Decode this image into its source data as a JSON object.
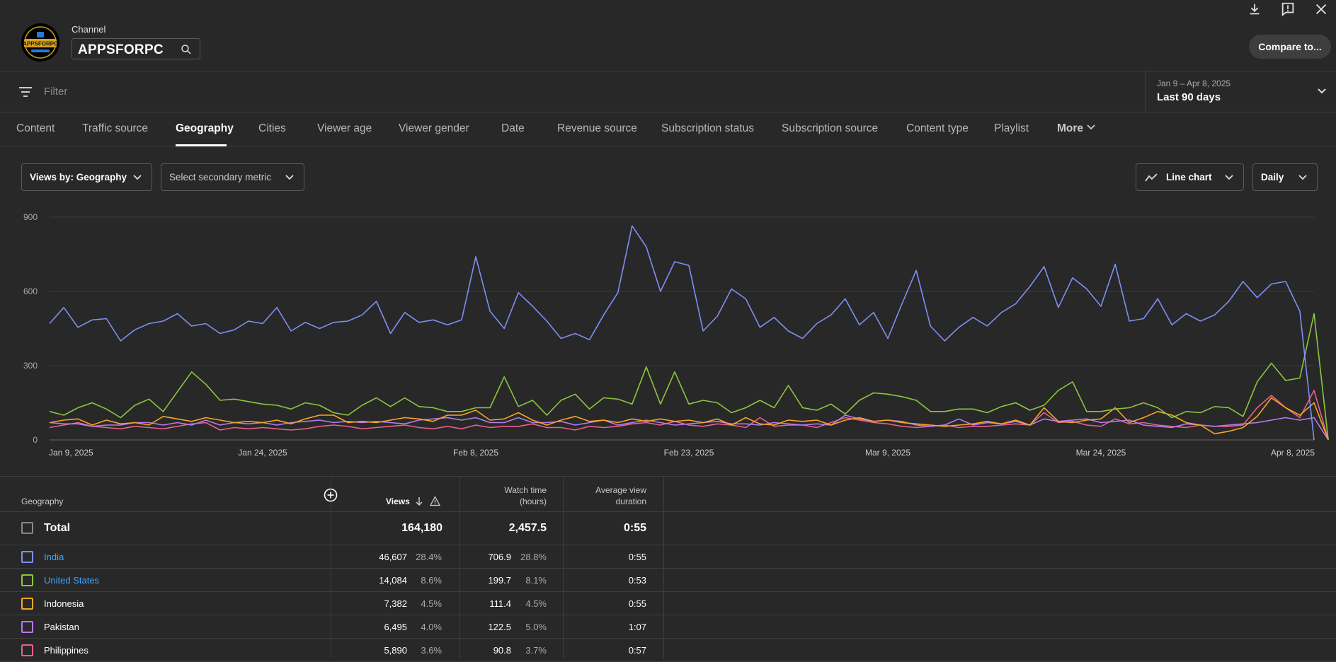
{
  "header": {
    "channel_label": "Channel",
    "channel_name": "APPSFORPC",
    "avatar_text": "APPSFORPC",
    "compare_label": "Compare to..."
  },
  "filter": {
    "placeholder": "Filter",
    "date_range": "Jan 9 – Apr 8, 2025",
    "date_label": "Last 90 days"
  },
  "tabs": [
    "Content",
    "Traffic source",
    "Geography",
    "Cities",
    "Viewer age",
    "Viewer gender",
    "Date",
    "Revenue source",
    "Subscription status",
    "Subscription source",
    "Content type",
    "Playlist",
    "More"
  ],
  "active_tab": "Geography",
  "controls": {
    "views_by": "Views by: Geography",
    "secondary": "Select secondary metric",
    "chart_type": "Line chart",
    "interval": "Daily"
  },
  "colors": {
    "India": "#7d8ff5",
    "United States": "#8cc63f",
    "Indonesia": "#f5a623",
    "Pakistan": "#b57bf0",
    "Philippines": "#e95f8a",
    "link": "#3ea6ff"
  },
  "chart_data": {
    "type": "line",
    "x_start": "Jan 9, 2025",
    "x_ticks": [
      "Jan 9, 2025",
      "Jan 24, 2025",
      "Feb 8, 2025",
      "Feb 23, 2025",
      "Mar 9, 2025",
      "Mar 24, 2025",
      "Apr 8, 2025"
    ],
    "y_ticks": [
      0,
      300,
      600,
      900
    ],
    "ylim": [
      0,
      900
    ],
    "grid": true,
    "series": [
      {
        "name": "India",
        "values": [
          470,
          535,
          455,
          485,
          490,
          400,
          445,
          470,
          480,
          510,
          460,
          470,
          430,
          445,
          480,
          470,
          535,
          440,
          475,
          450,
          475,
          480,
          505,
          560,
          430,
          515,
          475,
          485,
          465,
          485,
          740,
          520,
          450,
          595,
          540,
          480,
          410,
          430,
          405,
          505,
          595,
          865,
          780,
          600,
          720,
          705,
          440,
          500,
          610,
          570,
          455,
          495,
          440,
          410,
          470,
          505,
          570,
          465,
          515,
          410,
          550,
          685,
          460,
          400,
          455,
          495,
          460,
          515,
          550,
          620,
          700,
          535,
          655,
          610,
          540,
          710,
          480,
          490,
          570,
          465,
          510,
          480,
          505,
          560,
          640,
          575,
          630,
          640,
          520,
          0
        ]
      },
      {
        "name": "United States",
        "values": [
          115,
          100,
          130,
          150,
          125,
          90,
          140,
          165,
          115,
          195,
          275,
          225,
          160,
          165,
          155,
          145,
          140,
          125,
          150,
          140,
          110,
          100,
          140,
          170,
          135,
          170,
          135,
          130,
          115,
          115,
          130,
          130,
          255,
          135,
          160,
          100,
          160,
          185,
          125,
          170,
          165,
          145,
          295,
          145,
          275,
          145,
          160,
          150,
          110,
          130,
          160,
          130,
          220,
          130,
          120,
          145,
          105,
          160,
          190,
          185,
          175,
          160,
          115,
          115,
          125,
          125,
          110,
          135,
          150,
          120,
          140,
          200,
          235,
          115,
          115,
          125,
          130,
          150,
          130,
          90,
          115,
          110,
          135,
          130,
          95,
          235,
          310,
          240,
          250,
          510,
          0
        ]
      },
      {
        "name": "Indonesia",
        "values": [
          70,
          80,
          85,
          60,
          80,
          65,
          70,
          60,
          95,
          85,
          75,
          90,
          80,
          70,
          75,
          70,
          80,
          65,
          85,
          100,
          100,
          70,
          75,
          70,
          80,
          90,
          85,
          75,
          100,
          100,
          120,
          80,
          85,
          110,
          80,
          60,
          80,
          95,
          75,
          80,
          70,
          85,
          75,
          85,
          75,
          80,
          70,
          85,
          60,
          90,
          65,
          60,
          80,
          75,
          80,
          60,
          80,
          90,
          75,
          80,
          70,
          65,
          60,
          55,
          60,
          65,
          75,
          65,
          80,
          60,
          130,
          75,
          70,
          80,
          85,
          130,
          70,
          90,
          115,
          100,
          70,
          60,
          25,
          35,
          50,
          95,
          170,
          130,
          100,
          150,
          0
        ]
      },
      {
        "name": "Pakistan",
        "values": [
          70,
          65,
          65,
          55,
          60,
          60,
          70,
          70,
          60,
          70,
          60,
          80,
          60,
          70,
          65,
          70,
          60,
          70,
          75,
          80,
          70,
          75,
          70,
          75,
          70,
          65,
          80,
          85,
          90,
          80,
          90,
          70,
          70,
          90,
          70,
          70,
          75,
          60,
          70,
          80,
          60,
          70,
          80,
          70,
          60,
          65,
          70,
          75,
          65,
          65,
          60,
          70,
          65,
          60,
          65,
          60,
          100,
          85,
          75,
          80,
          75,
          60,
          55,
          60,
          85,
          60,
          70,
          65,
          75,
          60,
          85,
          75,
          80,
          85,
          70,
          75,
          80,
          60,
          55,
          50,
          65,
          60,
          55,
          60,
          65,
          70,
          80,
          90,
          80,
          90,
          0
        ]
      },
      {
        "name": "Philippines",
        "values": [
          50,
          60,
          70,
          55,
          50,
          45,
          55,
          50,
          45,
          55,
          65,
          70,
          40,
          50,
          45,
          50,
          45,
          40,
          45,
          55,
          60,
          55,
          45,
          50,
          55,
          60,
          50,
          45,
          55,
          45,
          60,
          50,
          55,
          55,
          65,
          50,
          50,
          40,
          55,
          50,
          55,
          65,
          70,
          60,
          75,
          60,
          55,
          65,
          60,
          50,
          90,
          55,
          60,
          60,
          50,
          70,
          90,
          80,
          70,
          65,
          55,
          50,
          55,
          60,
          50,
          55,
          55,
          60,
          65,
          60,
          110,
          70,
          75,
          60,
          55,
          85,
          65,
          70,
          60,
          55,
          50,
          60,
          55,
          55,
          60,
          130,
          180,
          130,
          90,
          200,
          0
        ]
      }
    ]
  },
  "table": {
    "headers": {
      "geography": "Geography",
      "views": "Views",
      "watch_time_line1": "Watch time",
      "watch_time_line2": "(hours)",
      "avg_line1": "Average view",
      "avg_line2": "duration"
    },
    "total": {
      "label": "Total",
      "views": "164,180",
      "watch": "2,457.5",
      "avg": "0:55"
    },
    "rows": [
      {
        "country": "India",
        "link": true,
        "views": "46,607",
        "views_pct": "28.4%",
        "watch": "706.9",
        "watch_pct": "28.8%",
        "avg": "0:55"
      },
      {
        "country": "United States",
        "link": true,
        "views": "14,084",
        "views_pct": "8.6%",
        "watch": "199.7",
        "watch_pct": "8.1%",
        "avg": "0:53"
      },
      {
        "country": "Indonesia",
        "link": false,
        "views": "7,382",
        "views_pct": "4.5%",
        "watch": "111.4",
        "watch_pct": "4.5%",
        "avg": "0:55"
      },
      {
        "country": "Pakistan",
        "link": false,
        "views": "6,495",
        "views_pct": "4.0%",
        "watch": "122.5",
        "watch_pct": "5.0%",
        "avg": "1:07"
      },
      {
        "country": "Philippines",
        "link": false,
        "views": "5,890",
        "views_pct": "3.6%",
        "watch": "90.8",
        "watch_pct": "3.7%",
        "avg": "0:57"
      }
    ]
  }
}
